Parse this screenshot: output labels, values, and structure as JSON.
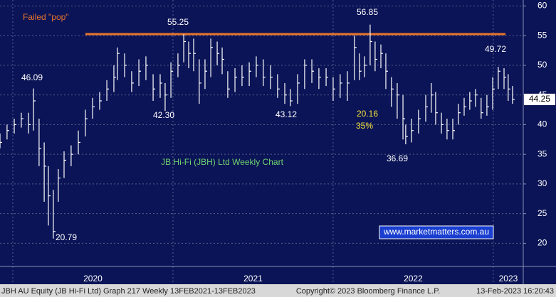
{
  "chart_data": {
    "type": "ohlc",
    "color": "#ffffff",
    "x": [
      2019.92,
      2019.964,
      2020.009,
      2020.053,
      2020.098,
      2020.129,
      2020.164,
      2020.196,
      2020.222,
      2020.253,
      2020.284,
      2020.32,
      2020.364,
      2020.409,
      2020.453,
      2020.498,
      2020.542,
      2020.587,
      2020.631,
      2020.653,
      2020.698,
      2020.742,
      2020.787,
      2020.831,
      2020.876,
      2020.92,
      2020.951,
      2020.987,
      2021.031,
      2021.067,
      2021.098,
      2021.129,
      2021.164,
      2021.2,
      2021.236,
      2021.276,
      2021.307,
      2021.342,
      2021.387,
      2021.431,
      2021.476,
      2021.52,
      2021.564,
      2021.609,
      2021.653,
      2021.698,
      2021.733,
      2021.778,
      2021.822,
      2021.867,
      2021.911,
      2021.956,
      2022.0,
      2022.044,
      2022.089,
      2022.133,
      2022.164,
      2022.196,
      2022.231,
      2022.262,
      2022.298,
      2022.329,
      2022.364,
      2022.4,
      2022.436,
      2022.453,
      2022.489,
      2022.533,
      2022.578,
      2022.613,
      2022.64,
      2022.676,
      2022.711,
      2022.747,
      2022.782,
      2022.818,
      2022.853,
      2022.889,
      2022.924,
      2022.96,
      2022.996,
      2023.031,
      2023.067,
      2023.093,
      2023.12
    ],
    "high": [
      38.5,
      40,
      41,
      42,
      42,
      46.09,
      41,
      37,
      33,
      29,
      32.5,
      35.5,
      36.5,
      39,
      42.5,
      44.5,
      45.5,
      47.5,
      50,
      53,
      52,
      49,
      51,
      51.5,
      48.5,
      48.5,
      47,
      50.5,
      52,
      55.25,
      54,
      54.5,
      51,
      51,
      54.5,
      54,
      53,
      49,
      49.5,
      50,
      50.5,
      51.5,
      51,
      50,
      48.5,
      47,
      46,
      48.5,
      51,
      51,
      49.5,
      49.5,
      48,
      48.5,
      49,
      55,
      52,
      51.5,
      56.85,
      54,
      53.5,
      52,
      48,
      47,
      45,
      40,
      41,
      42.5,
      45,
      47,
      45.5,
      42,
      41,
      41,
      43.5,
      44.5,
      45.5,
      46,
      44.5,
      45,
      48,
      49.72,
      49.5,
      48.5,
      46.5
    ],
    "low": [
      36,
      37.5,
      38.5,
      39.5,
      38.5,
      39,
      33,
      27,
      23,
      20.79,
      27,
      31,
      33,
      35,
      38,
      41,
      42.5,
      44,
      45.5,
      47.5,
      48,
      45.5,
      46.5,
      47.5,
      44,
      44.5,
      42.3,
      44.5,
      48,
      50.5,
      49.5,
      49,
      43.5,
      46,
      48,
      50,
      48.5,
      44.5,
      45.5,
      46.5,
      46.5,
      48,
      46.5,
      46,
      44.5,
      43.5,
      43.12,
      43.5,
      46,
      47,
      46,
      46.5,
      44,
      44.5,
      44,
      47.5,
      47.5,
      48,
      50,
      49,
      49.5,
      46,
      43,
      41,
      37.5,
      36.69,
      37,
      38.5,
      40.5,
      42,
      40,
      38.5,
      37.5,
      37.5,
      40,
      41.5,
      42.5,
      43,
      41,
      41.5,
      42.5,
      46,
      46,
      44,
      43.5
    ],
    "close": [
      37,
      39,
      40,
      41,
      40,
      44,
      36,
      33,
      28,
      22,
      31,
      34,
      35,
      37,
      41,
      43,
      44,
      46,
      48,
      52,
      50,
      47,
      49,
      50,
      46,
      47,
      45,
      49,
      50,
      54,
      52,
      52,
      47,
      49,
      53,
      52,
      51,
      46,
      48,
      48,
      49,
      50,
      48,
      48,
      46,
      45,
      44,
      47,
      50,
      49,
      48,
      48,
      46,
      47,
      47,
      53,
      49,
      50,
      54,
      51,
      52,
      49,
      46,
      45,
      41,
      38,
      39,
      41,
      43,
      45,
      42,
      40,
      39,
      39,
      42,
      43,
      44,
      45,
      42,
      43,
      46,
      49,
      48,
      46,
      44.25
    ],
    "xlim": [
      2019.92,
      2023.187
    ],
    "xticks": [
      2020,
      2021,
      2022,
      2023
    ],
    "ylim": [
      16.1,
      61
    ],
    "yticks": [
      20,
      25,
      30,
      35,
      40,
      45,
      50,
      55,
      60
    ],
    "grid": true,
    "resistance_line": {
      "value": 55.25,
      "from": 2020.453,
      "color": "#e8742c"
    },
    "annotations": [
      "Failed \"pop\"",
      "55.25",
      "56.85",
      "46.09",
      "42.30",
      "43.12",
      "20.79",
      "36.69",
      "49.72",
      "20.16",
      "35%"
    ],
    "title": "JB Hi-Fi (JBH) Ltd Weekly Chart",
    "watermark": "www.marketmatters.com.au",
    "footer": [
      "JBH AU Equity (JB Hi-Fi Ltd) Graph 217  Weekly 13FEB2021-13FEB2023",
      "Copyright© 2023 Bloomberg Finance L.P.",
      "13-Feb-2023 16:20:43"
    ]
  }
}
